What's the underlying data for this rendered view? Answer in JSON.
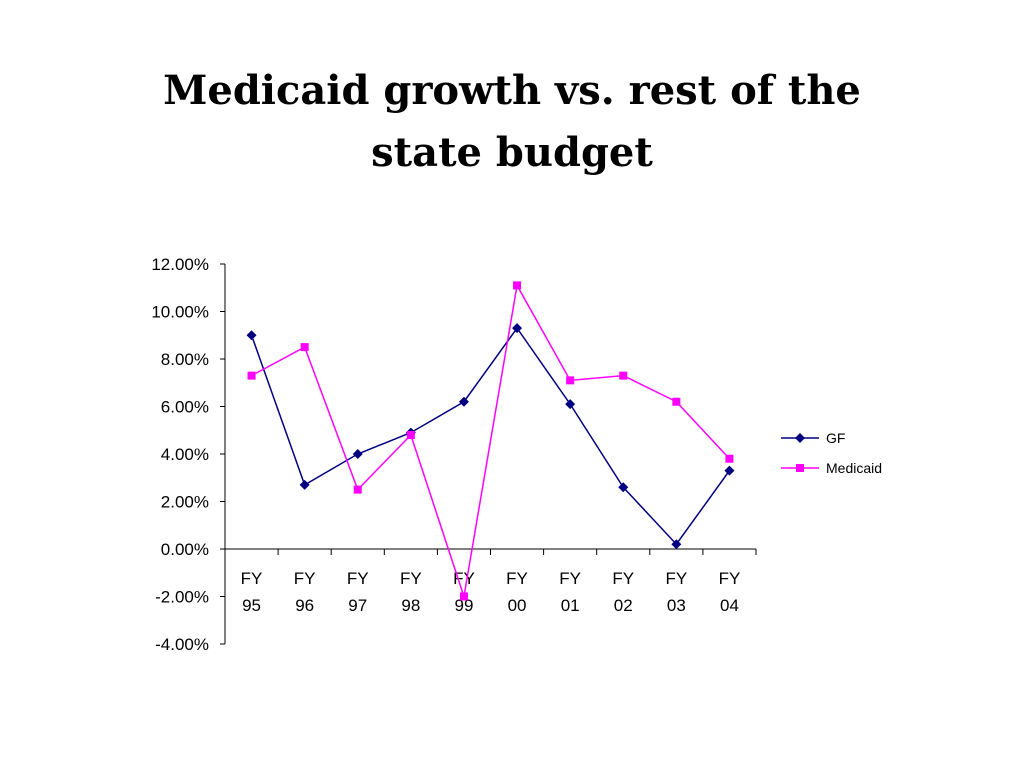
{
  "slide": {
    "title": "Medicaid growth vs. rest of the state budget"
  },
  "chart_data": {
    "type": "line",
    "title": "",
    "xlabel": "",
    "ylabel": "",
    "categories": [
      [
        "FY",
        "95"
      ],
      [
        "FY",
        "96"
      ],
      [
        "FY",
        "97"
      ],
      [
        "FY",
        "98"
      ],
      [
        "FY",
        "99"
      ],
      [
        "FY",
        "00"
      ],
      [
        "FY",
        "01"
      ],
      [
        "FY",
        "02"
      ],
      [
        "FY",
        "03"
      ],
      [
        "FY",
        "04"
      ]
    ],
    "ylim": [
      -0.04,
      0.12
    ],
    "yticks": [
      {
        "value": 0.12,
        "label": "12.00%"
      },
      {
        "value": 0.1,
        "label": "10.00%"
      },
      {
        "value": 0.08,
        "label": "8.00%"
      },
      {
        "value": 0.06,
        "label": "6.00%"
      },
      {
        "value": 0.04,
        "label": "4.00%"
      },
      {
        "value": 0.02,
        "label": "2.00%"
      },
      {
        "value": 0.0,
        "label": "0.00%"
      },
      {
        "value": -0.02,
        "label": "-2.00%"
      },
      {
        "value": -0.04,
        "label": "-4.00%"
      }
    ],
    "grid": false,
    "legend_position": "right",
    "series": [
      {
        "name": "GF",
        "color": "#000080",
        "marker": "diamond",
        "values": [
          0.09,
          0.027,
          0.04,
          0.049,
          0.062,
          0.093,
          0.061,
          0.026,
          0.002,
          0.033
        ]
      },
      {
        "name": "Medicaid",
        "color": "#ff00ff",
        "marker": "square",
        "values": [
          0.073,
          0.085,
          0.025,
          0.048,
          -0.02,
          0.111,
          0.071,
          0.073,
          0.062,
          0.038
        ]
      }
    ]
  }
}
